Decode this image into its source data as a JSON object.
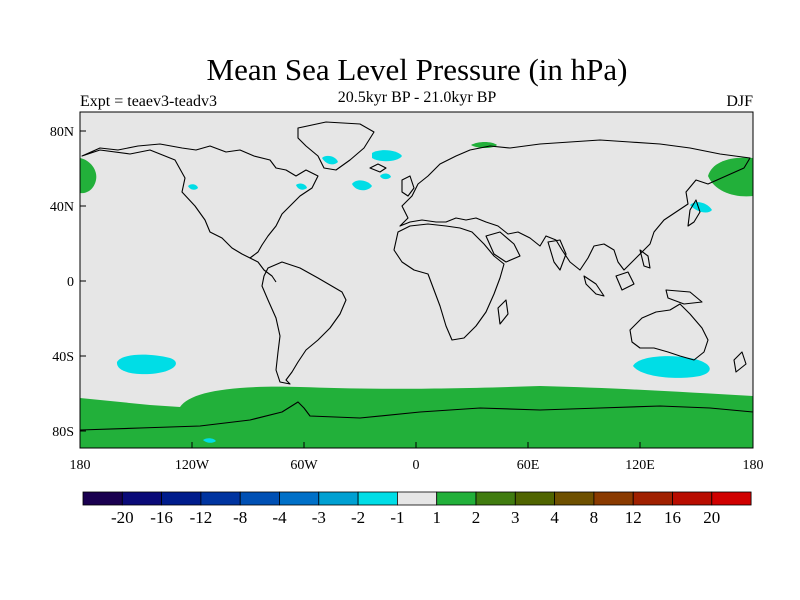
{
  "title": "Mean Sea Level Pressure (in hPa)",
  "subtitle_left": "Expt = teaev3-teadv3",
  "subtitle_center": "20.5kyr BP - 21.0kyr BP",
  "subtitle_right": "DJF",
  "axes": {
    "lat_ticks": [
      "80N",
      "40N",
      "0",
      "40S",
      "80S"
    ],
    "lon_ticks": [
      "180",
      "120W",
      "60W",
      "0",
      "60E",
      "120E",
      "180"
    ]
  },
  "colors": {
    "ocean": "#e6e6e6",
    "positive_band": "#22b03a",
    "negative_band": "#00dde6"
  },
  "colorbar": {
    "labels": [
      "-20",
      "-16",
      "-12",
      "-8",
      "-4",
      "-3",
      "-2",
      "-1",
      "1",
      "2",
      "3",
      "4",
      "8",
      "12",
      "16",
      "20"
    ],
    "colors": [
      "#1a0050",
      "#0a0a78",
      "#001c8c",
      "#0034a0",
      "#0050b4",
      "#0070c8",
      "#00a0d2",
      "#00dde6",
      "#e6e6e6",
      "#22b03a",
      "#407c10",
      "#4f6400",
      "#6e5000",
      "#8a3a00",
      "#a02000",
      "#b80c00",
      "#d00000"
    ]
  }
}
